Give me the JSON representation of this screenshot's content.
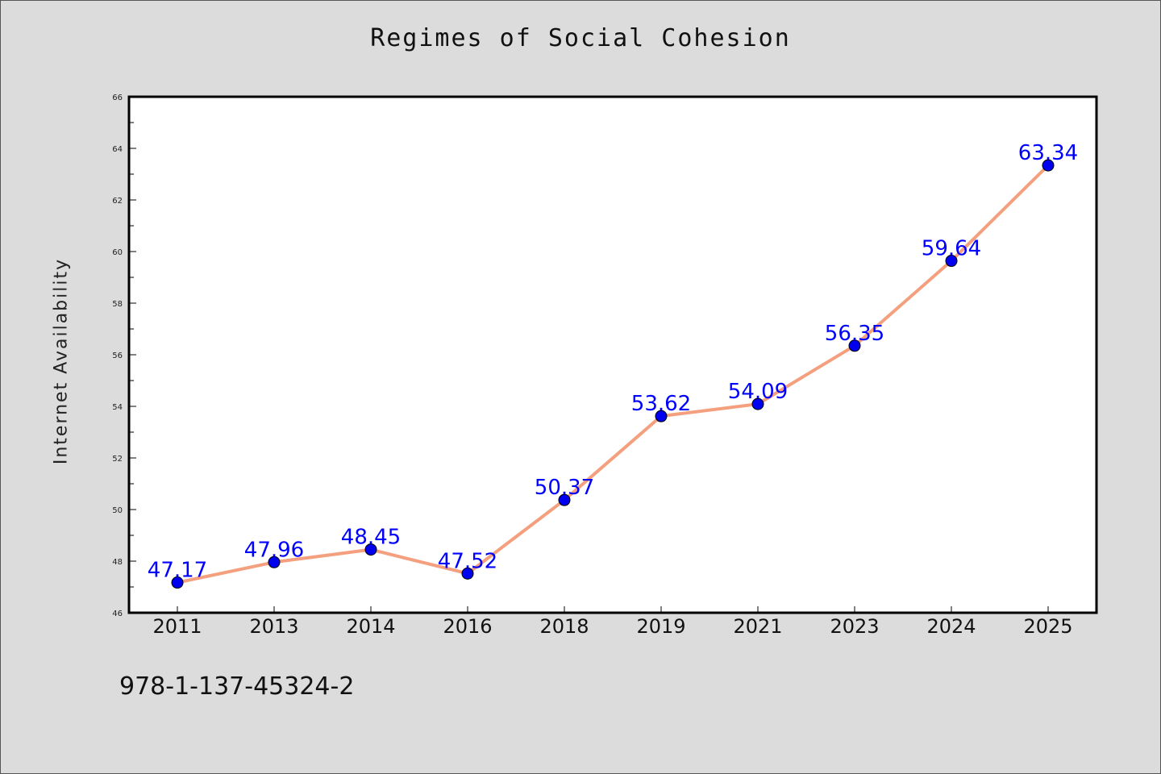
{
  "chart_data": {
    "type": "line",
    "title": "Regimes of Social Cohesion",
    "xlabel": "",
    "ylabel": "Internet Availability",
    "categories": [
      "2011",
      "2013",
      "2014",
      "2016",
      "2018",
      "2019",
      "2021",
      "2023",
      "2024",
      "2025"
    ],
    "series": [
      {
        "values": [
          47.17,
          47.96,
          48.45,
          47.52,
          50.37,
          53.62,
          54.09,
          56.35,
          59.64,
          63.34
        ]
      }
    ],
    "data_labels": [
      "47.17",
      "47.96",
      "48.45",
      "47.52",
      "50.37",
      "53.62",
      "54.09",
      "56.35",
      "59.64",
      "63.34"
    ],
    "ylim": [
      46,
      66
    ],
    "yticks": [
      "46",
      "48",
      "50",
      "52",
      "54",
      "56",
      "58",
      "60",
      "62",
      "64",
      "66"
    ],
    "grid": false,
    "legend": "none",
    "colors": {
      "line": "#f4a07e",
      "marker": "#0000ee",
      "label": "#0000ff",
      "background": "#dcdcdc",
      "plot_bg": "#ffffff"
    }
  },
  "footer": {
    "isbn": "978-1-137-45324-2"
  }
}
